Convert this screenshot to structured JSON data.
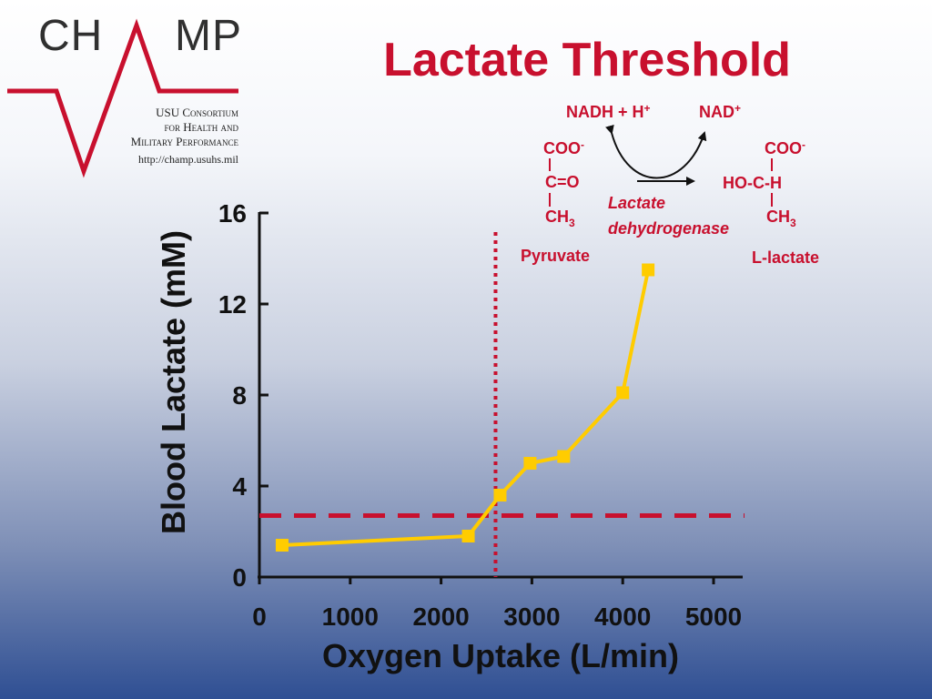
{
  "logo": {
    "wordmark_left": "CH",
    "wordmark_right": "MP",
    "line1": "USU Consortium",
    "line2": "for Health and",
    "line3": "Military Performance",
    "url": "http://champ.usuhs.mil",
    "accent_color": "#c8102e"
  },
  "slide": {
    "title": "Lactate Threshold"
  },
  "reaction": {
    "cofactor_in": "NADH + H",
    "cofactor_in_sup": "+",
    "cofactor_out": "NAD",
    "cofactor_out_sup": "+",
    "enzyme_line1": "Lactate",
    "enzyme_line2": "dehydrogenase",
    "pyruvate": {
      "name": "Pyruvate",
      "top": "COO",
      "top_sup": "-",
      "mid": "C=O",
      "bottom": "CH",
      "bottom_sub": "3"
    },
    "lactate": {
      "name": "L-lactate",
      "top": "COO",
      "top_sup": "-",
      "mid": "HO-C-H",
      "bottom": "CH",
      "bottom_sub": "3"
    }
  },
  "chart_data": {
    "type": "line",
    "title": "",
    "xlabel": "Oxygen Uptake (L/min)",
    "ylabel": "Blood Lactate (mM)",
    "xlim": [
      0,
      5300
    ],
    "ylim": [
      0,
      16
    ],
    "x_ticks": [
      0,
      1000,
      2000,
      3000,
      4000,
      5000
    ],
    "y_ticks": [
      0,
      4,
      8,
      12,
      16
    ],
    "series": [
      {
        "color": "#ffcc00",
        "marker": "square",
        "points": [
          {
            "x": 250,
            "y": 1.4
          },
          {
            "x": 2300,
            "y": 1.8
          },
          {
            "x": 2650,
            "y": 3.6
          },
          {
            "x": 2980,
            "y": 5.0
          },
          {
            "x": 3350,
            "y": 5.3
          },
          {
            "x": 4000,
            "y": 8.1
          },
          {
            "x": 4280,
            "y": 13.5
          }
        ]
      }
    ],
    "threshold_x": 2600,
    "threshold_y": 2.7,
    "threshold_color": "#c8102e",
    "grid": false,
    "legend": "none"
  }
}
